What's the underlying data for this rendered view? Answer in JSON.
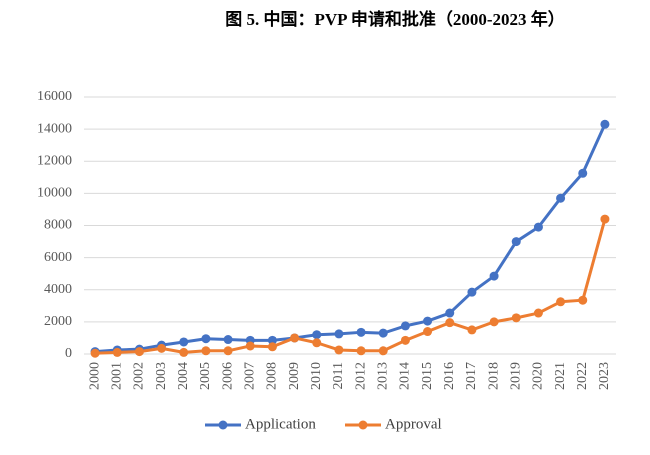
{
  "chart_data": {
    "type": "line",
    "title": "图 5. 中国：PVP 申请和批准（2000-2023 年）",
    "categories": [
      "2000",
      "2001",
      "2002",
      "2003",
      "2004",
      "2005",
      "2006",
      "2007",
      "2008",
      "2009",
      "2010",
      "2011",
      "2012",
      "2013",
      "2014",
      "2015",
      "2016",
      "2017",
      "2018",
      "2019",
      "2020",
      "2021",
      "2022",
      "2023"
    ],
    "series": [
      {
        "name": "Application",
        "color": "#4472c4",
        "values": [
          150,
          250,
          300,
          550,
          750,
          950,
          900,
          850,
          850,
          1000,
          1200,
          1250,
          1350,
          1300,
          1750,
          2050,
          2550,
          3850,
          4850,
          7000,
          7900,
          9700,
          11250,
          14300
        ]
      },
      {
        "name": "Approval",
        "color": "#ed7d31",
        "values": [
          50,
          100,
          150,
          350,
          100,
          200,
          200,
          500,
          450,
          1000,
          700,
          250,
          200,
          200,
          850,
          1400,
          1950,
          1500,
          2000,
          2250,
          2550,
          3250,
          3350,
          8400
        ]
      }
    ],
    "ylim": [
      0,
      16000
    ],
    "yticks": [
      0,
      2000,
      4000,
      6000,
      8000,
      10000,
      12000,
      14000,
      16000
    ],
    "grid": true,
    "legend": "bottom"
  }
}
